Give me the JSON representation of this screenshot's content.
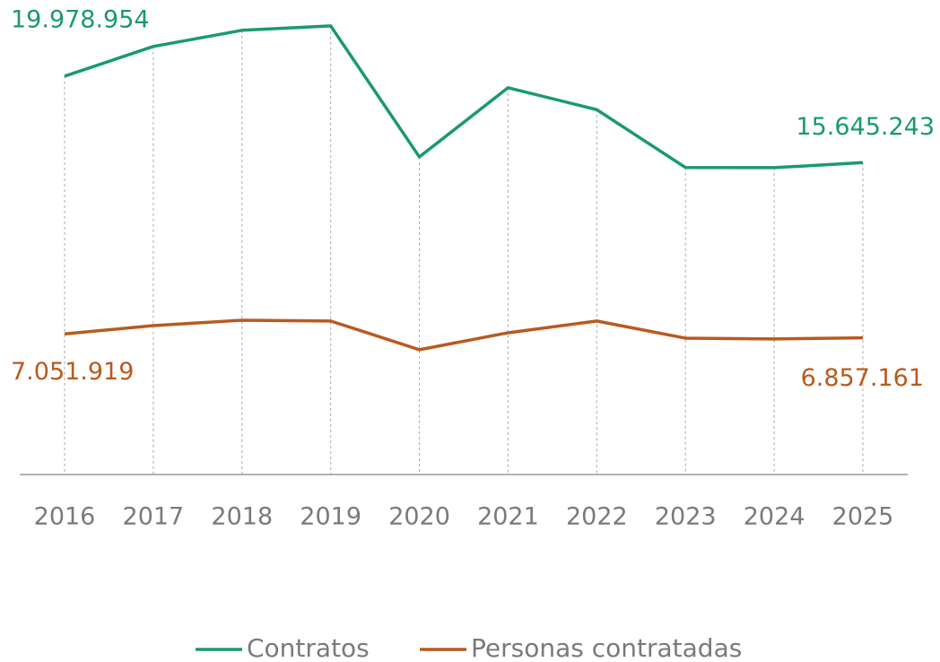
{
  "chart_data": {
    "type": "line",
    "categories": [
      "2016",
      "2017",
      "2018",
      "2019",
      "2020",
      "2021",
      "2022",
      "2023",
      "2024",
      "2025"
    ],
    "ylim": [
      0,
      23800000
    ],
    "series": [
      {
        "name": "Contratos",
        "color": "#1a9a6c",
        "values": [
          19978954,
          21470000,
          22280000,
          22500000,
          15930000,
          19400000,
          18300000,
          15400000,
          15390000,
          15645243
        ],
        "value_labels": [
          "19.978.954",
          null,
          null,
          null,
          null,
          null,
          null,
          null,
          null,
          "15.645.243"
        ]
      },
      {
        "name": "Personas contratadas",
        "color": "#b85a1e",
        "values": [
          7051919,
          7470000,
          7740000,
          7700000,
          6260000,
          7110000,
          7700000,
          6840000,
          6800000,
          6857161
        ],
        "value_labels": [
          "7.051.919",
          null,
          null,
          null,
          null,
          null,
          null,
          null,
          null,
          "6.857.161"
        ]
      }
    ]
  }
}
